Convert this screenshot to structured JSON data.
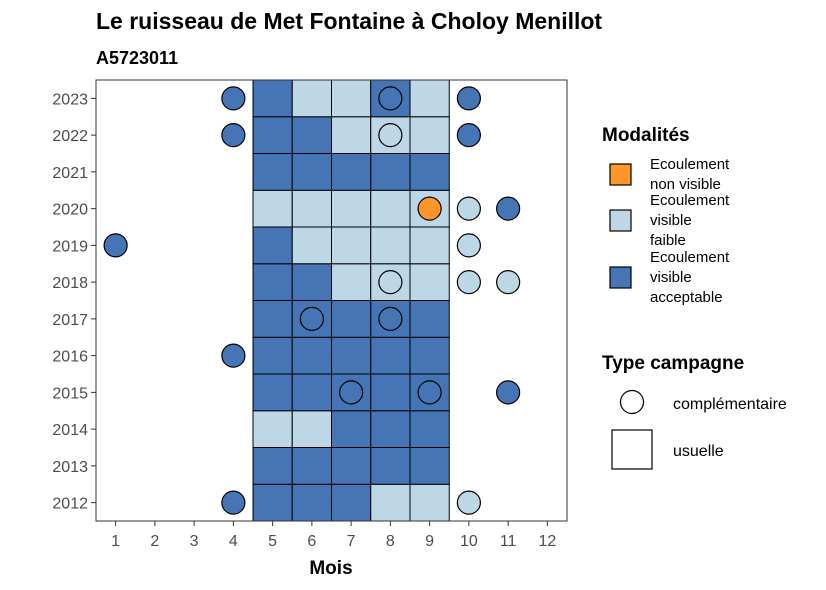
{
  "chart_data": {
    "type": "heatmap",
    "title": "Le ruisseau de Met Fontaine à Choloy Menillot",
    "subtitle": "A5723011",
    "xlabel": "Mois",
    "ylabel": "",
    "x_ticks": [
      "1",
      "2",
      "3",
      "4",
      "5",
      "6",
      "7",
      "8",
      "9",
      "10",
      "11",
      "12"
    ],
    "y_ticks": [
      "2012",
      "2013",
      "2014",
      "2015",
      "2016",
      "2017",
      "2018",
      "2019",
      "2020",
      "2021",
      "2022",
      "2023"
    ],
    "xlim": [
      0.5,
      12.5
    ],
    "ylim": [
      2011.5,
      2023.5
    ],
    "colors": {
      "non_visible": "#FE962B",
      "faible": "#BDD7E7",
      "acceptable": "#4575B4"
    },
    "legend": {
      "modalites_title": "Modalités",
      "modalites": [
        {
          "key": "non_visible",
          "label_lines": [
            "Ecoulement",
            "non visible"
          ]
        },
        {
          "key": "faible",
          "label_lines": [
            "Ecoulement",
            "visible",
            "faible"
          ]
        },
        {
          "key": "acceptable",
          "label_lines": [
            "Ecoulement",
            "visible",
            "acceptable"
          ]
        }
      ],
      "campagne_title": "Type campagne",
      "campagnes": [
        {
          "shape": "circle",
          "label": "complémentaire"
        },
        {
          "shape": "square",
          "label": "usuelle"
        }
      ]
    },
    "usuelle": [
      {
        "year": 2012,
        "month": 5,
        "value": "acceptable"
      },
      {
        "year": 2012,
        "month": 6,
        "value": "acceptable"
      },
      {
        "year": 2012,
        "month": 7,
        "value": "acceptable"
      },
      {
        "year": 2012,
        "month": 8,
        "value": "faible"
      },
      {
        "year": 2012,
        "month": 9,
        "value": "faible"
      },
      {
        "year": 2013,
        "month": 5,
        "value": "acceptable"
      },
      {
        "year": 2013,
        "month": 6,
        "value": "acceptable"
      },
      {
        "year": 2013,
        "month": 7,
        "value": "acceptable"
      },
      {
        "year": 2013,
        "month": 8,
        "value": "acceptable"
      },
      {
        "year": 2013,
        "month": 9,
        "value": "acceptable"
      },
      {
        "year": 2014,
        "month": 5,
        "value": "faible"
      },
      {
        "year": 2014,
        "month": 6,
        "value": "faible"
      },
      {
        "year": 2014,
        "month": 7,
        "value": "acceptable"
      },
      {
        "year": 2014,
        "month": 8,
        "value": "acceptable"
      },
      {
        "year": 2014,
        "month": 9,
        "value": "acceptable"
      },
      {
        "year": 2015,
        "month": 5,
        "value": "acceptable"
      },
      {
        "year": 2015,
        "month": 6,
        "value": "acceptable"
      },
      {
        "year": 2015,
        "month": 7,
        "value": "acceptable"
      },
      {
        "year": 2015,
        "month": 8,
        "value": "acceptable"
      },
      {
        "year": 2015,
        "month": 9,
        "value": "acceptable"
      },
      {
        "year": 2016,
        "month": 5,
        "value": "acceptable"
      },
      {
        "year": 2016,
        "month": 6,
        "value": "acceptable"
      },
      {
        "year": 2016,
        "month": 7,
        "value": "acceptable"
      },
      {
        "year": 2016,
        "month": 8,
        "value": "acceptable"
      },
      {
        "year": 2016,
        "month": 9,
        "value": "acceptable"
      },
      {
        "year": 2017,
        "month": 5,
        "value": "acceptable"
      },
      {
        "year": 2017,
        "month": 6,
        "value": "acceptable"
      },
      {
        "year": 2017,
        "month": 7,
        "value": "acceptable"
      },
      {
        "year": 2017,
        "month": 8,
        "value": "acceptable"
      },
      {
        "year": 2017,
        "month": 9,
        "value": "acceptable"
      },
      {
        "year": 2018,
        "month": 5,
        "value": "acceptable"
      },
      {
        "year": 2018,
        "month": 6,
        "value": "acceptable"
      },
      {
        "year": 2018,
        "month": 7,
        "value": "faible"
      },
      {
        "year": 2018,
        "month": 8,
        "value": "faible"
      },
      {
        "year": 2018,
        "month": 9,
        "value": "faible"
      },
      {
        "year": 2019,
        "month": 5,
        "value": "acceptable"
      },
      {
        "year": 2019,
        "month": 6,
        "value": "faible"
      },
      {
        "year": 2019,
        "month": 7,
        "value": "faible"
      },
      {
        "year": 2019,
        "month": 8,
        "value": "faible"
      },
      {
        "year": 2019,
        "month": 9,
        "value": "faible"
      },
      {
        "year": 2020,
        "month": 5,
        "value": "faible"
      },
      {
        "year": 2020,
        "month": 6,
        "value": "faible"
      },
      {
        "year": 2020,
        "month": 7,
        "value": "faible"
      },
      {
        "year": 2020,
        "month": 8,
        "value": "faible"
      },
      {
        "year": 2020,
        "month": 9,
        "value": "faible"
      },
      {
        "year": 2021,
        "month": 5,
        "value": "acceptable"
      },
      {
        "year": 2021,
        "month": 6,
        "value": "acceptable"
      },
      {
        "year": 2021,
        "month": 7,
        "value": "acceptable"
      },
      {
        "year": 2021,
        "month": 8,
        "value": "acceptable"
      },
      {
        "year": 2021,
        "month": 9,
        "value": "acceptable"
      },
      {
        "year": 2022,
        "month": 5,
        "value": "acceptable"
      },
      {
        "year": 2022,
        "month": 6,
        "value": "acceptable"
      },
      {
        "year": 2022,
        "month": 7,
        "value": "faible"
      },
      {
        "year": 2022,
        "month": 8,
        "value": "faible"
      },
      {
        "year": 2022,
        "month": 9,
        "value": "faible"
      },
      {
        "year": 2023,
        "month": 5,
        "value": "acceptable"
      },
      {
        "year": 2023,
        "month": 6,
        "value": "faible"
      },
      {
        "year": 2023,
        "month": 7,
        "value": "faible"
      },
      {
        "year": 2023,
        "month": 8,
        "value": "acceptable"
      },
      {
        "year": 2023,
        "month": 9,
        "value": "faible"
      }
    ],
    "complementaire": [
      {
        "year": 2023,
        "month": 4,
        "value": "acceptable"
      },
      {
        "year": 2023,
        "month": 8,
        "value": "acceptable"
      },
      {
        "year": 2023,
        "month": 10,
        "value": "acceptable"
      },
      {
        "year": 2022,
        "month": 4,
        "value": "acceptable"
      },
      {
        "year": 2022,
        "month": 8,
        "value": "faible"
      },
      {
        "year": 2022,
        "month": 10,
        "value": "acceptable"
      },
      {
        "year": 2020,
        "month": 9,
        "value": "non_visible"
      },
      {
        "year": 2020,
        "month": 10,
        "value": "faible"
      },
      {
        "year": 2020,
        "month": 11,
        "value": "acceptable"
      },
      {
        "year": 2019,
        "month": 1,
        "value": "acceptable"
      },
      {
        "year": 2019,
        "month": 10,
        "value": "faible"
      },
      {
        "year": 2018,
        "month": 8,
        "value": "faible"
      },
      {
        "year": 2018,
        "month": 10,
        "value": "faible"
      },
      {
        "year": 2018,
        "month": 11,
        "value": "faible"
      },
      {
        "year": 2017,
        "month": 6,
        "value": "acceptable"
      },
      {
        "year": 2017,
        "month": 8,
        "value": "acceptable"
      },
      {
        "year": 2016,
        "month": 4,
        "value": "acceptable"
      },
      {
        "year": 2015,
        "month": 7,
        "value": "acceptable"
      },
      {
        "year": 2015,
        "month": 9,
        "value": "acceptable"
      },
      {
        "year": 2015,
        "month": 11,
        "value": "acceptable"
      },
      {
        "year": 2012,
        "month": 4,
        "value": "acceptable"
      },
      {
        "year": 2012,
        "month": 10,
        "value": "faible"
      }
    ]
  }
}
